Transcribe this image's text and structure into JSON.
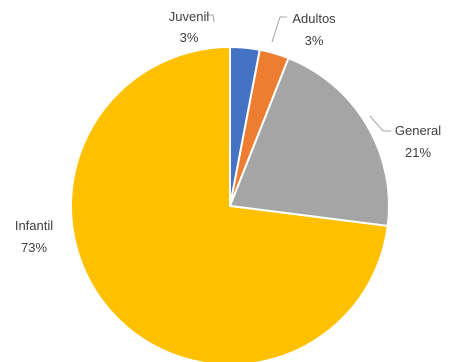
{
  "chart_data": {
    "type": "pie",
    "title": "",
    "start_angle_deg": 0,
    "direction": "clockwise",
    "slices": [
      {
        "label": "Juvenil",
        "percent_label": "3%",
        "value": 3,
        "color": "#4472c4"
      },
      {
        "label": "Adultos",
        "percent_label": "3%",
        "value": 3,
        "color": "#ed7d31"
      },
      {
        "label": "General",
        "percent_label": "21%",
        "value": 21,
        "color": "#a5a5a5"
      },
      {
        "label": "Infantil",
        "percent_label": "73%",
        "value": 73,
        "color": "#ffc000"
      }
    ],
    "legend": "none",
    "data_labels": "outside-with-leader-lines"
  }
}
